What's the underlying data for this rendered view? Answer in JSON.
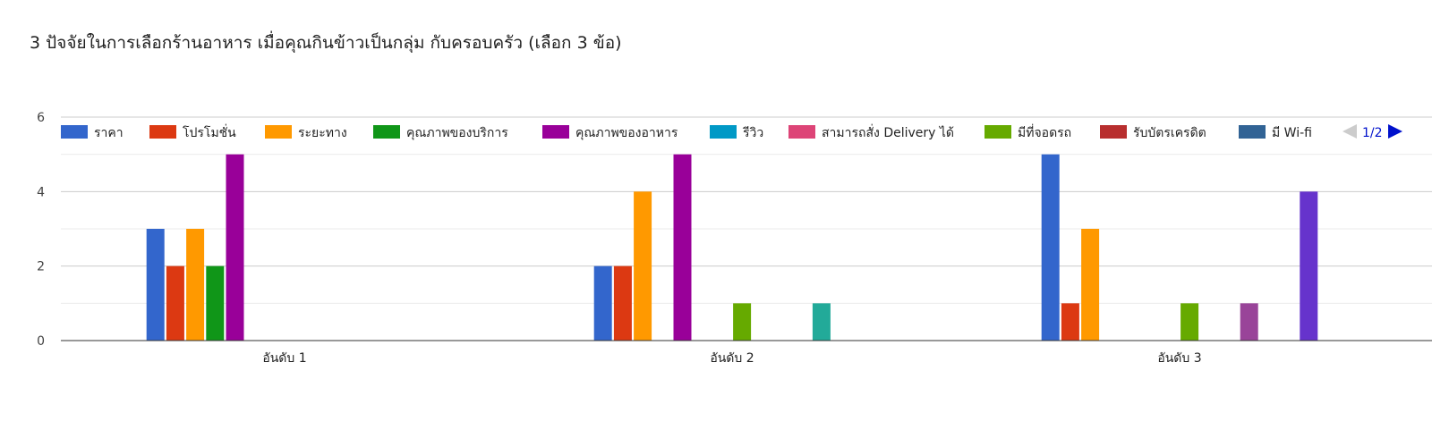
{
  "chart_data": {
    "type": "bar",
    "title": "3 ปัจจัยในการเลือกร้านอาหาร เมื่อคุณกินข้าวเป็นกลุ่ม กับครอบครัว (เลือก 3 ข้อ)",
    "categories": [
      "อันดับ 1",
      "อันดับ 2",
      "อันดับ 3"
    ],
    "ylim": [
      0,
      6
    ],
    "yticks": [
      0,
      2,
      4,
      6
    ],
    "legend_position": "top",
    "legend_page": "1/2",
    "grid": true,
    "series": [
      {
        "name": "ราคา",
        "color": "#3366cc",
        "values": [
          3,
          2,
          5
        ]
      },
      {
        "name": "โปรโมชั่น",
        "color": "#dc3912",
        "values": [
          2,
          2,
          1
        ]
      },
      {
        "name": "ระยะทาง",
        "color": "#ff9900",
        "values": [
          3,
          4,
          3
        ]
      },
      {
        "name": "คุณภาพของบริการ",
        "color": "#109618",
        "values": [
          2,
          0,
          0
        ]
      },
      {
        "name": "คุณภาพของอาหาร",
        "color": "#990099",
        "values": [
          5,
          5,
          0
        ]
      },
      {
        "name": "รีวิว",
        "color": "#0099c6",
        "values": [
          0,
          0,
          0
        ]
      },
      {
        "name": "สามารถสั่ง Delivery ได้",
        "color": "#dd4477",
        "values": [
          0,
          0,
          0
        ]
      },
      {
        "name": "มีที่จอดรถ",
        "color": "#66aa00",
        "values": [
          0,
          1,
          1
        ]
      },
      {
        "name": "รับบัตรเครดิต",
        "color": "#b82e2e",
        "values": [
          0,
          0,
          0
        ]
      },
      {
        "name": "มี Wi-fi",
        "color": "#316395",
        "values": [
          0,
          0,
          0
        ]
      },
      {
        "color": "#994499",
        "values": [
          0,
          0,
          1
        ]
      },
      {
        "color": "#22aa99",
        "values": [
          0,
          1,
          0
        ]
      },
      {
        "color": "#aaaa11",
        "values": [
          0,
          0,
          0
        ]
      },
      {
        "color": "#6633cc",
        "values": [
          0,
          0,
          4
        ]
      }
    ]
  }
}
